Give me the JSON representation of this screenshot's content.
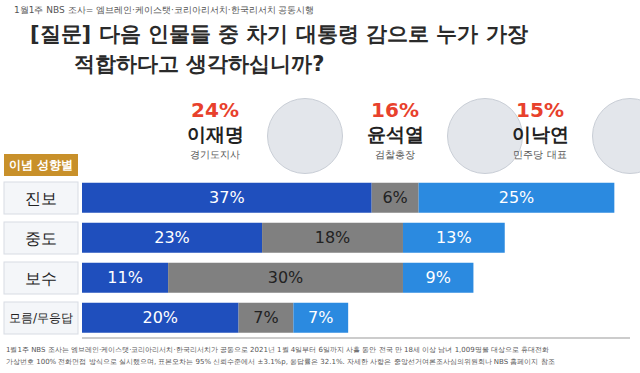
{
  "chart_data": {
    "type": "bar",
    "orientation": "horizontal",
    "stacked": true,
    "data_labels": true,
    "tick_labels": "y",
    "header": "1월1주 NBS 조사= 엠브레인·케이스탯·코리아리서치·한국리서치 공동시행",
    "title": [
      "[질문] 다음 인물들 중 차기 대통령 감으로 누가 가장",
      "적합하다고 생각하십니까?"
    ],
    "group_label": "이념 성향별",
    "categories": [
      "진보",
      "중도",
      "보수",
      "모름/무응답"
    ],
    "xlim": [
      0,
      70
    ],
    "series": [
      {
        "name": "이재명",
        "role": "경기도지사",
        "overall": {
          "value": 24,
          "label": "24%"
        },
        "color": "#1f4fbd",
        "values": [
          37,
          23,
          11,
          20
        ],
        "value_labels": [
          "37%",
          "23%",
          "11%",
          "20%"
        ]
      },
      {
        "name": "윤석열",
        "role": "검찰총장",
        "overall": {
          "value": 16,
          "label": "16%"
        },
        "color": "#808080",
        "values": [
          6,
          18,
          30,
          7
        ],
        "value_labels": [
          "6%",
          "18%",
          "30%",
          "7%"
        ]
      },
      {
        "name": "이낙연",
        "role": "민주당 대표",
        "overall": {
          "value": 15,
          "label": "15%"
        },
        "color": "#2b8ae0",
        "values": [
          25,
          13,
          9,
          7
        ],
        "value_labels": [
          "25%",
          "13%",
          "9%",
          "7%"
        ]
      }
    ],
    "footnote": [
      "1월1주 NBS 조사는 엠브레인·케이스탯·코리아리서치·한국리서치가 공동으로 2021년 1월 4일부터 6일까지 사흘 동안 전국 만 18세 이상 남녀 1,009명을 대상으로 휴대전화",
      "가상번호 100% 전화면접 방식으로 실시했으며, 표본오차는 95% 신뢰수준에서 ±3.1%p, 응답률은 32.1%. 자세한 사항은 중앙선거여론조사심의위원회나 NBS 홈페이지 참조"
    ]
  }
}
